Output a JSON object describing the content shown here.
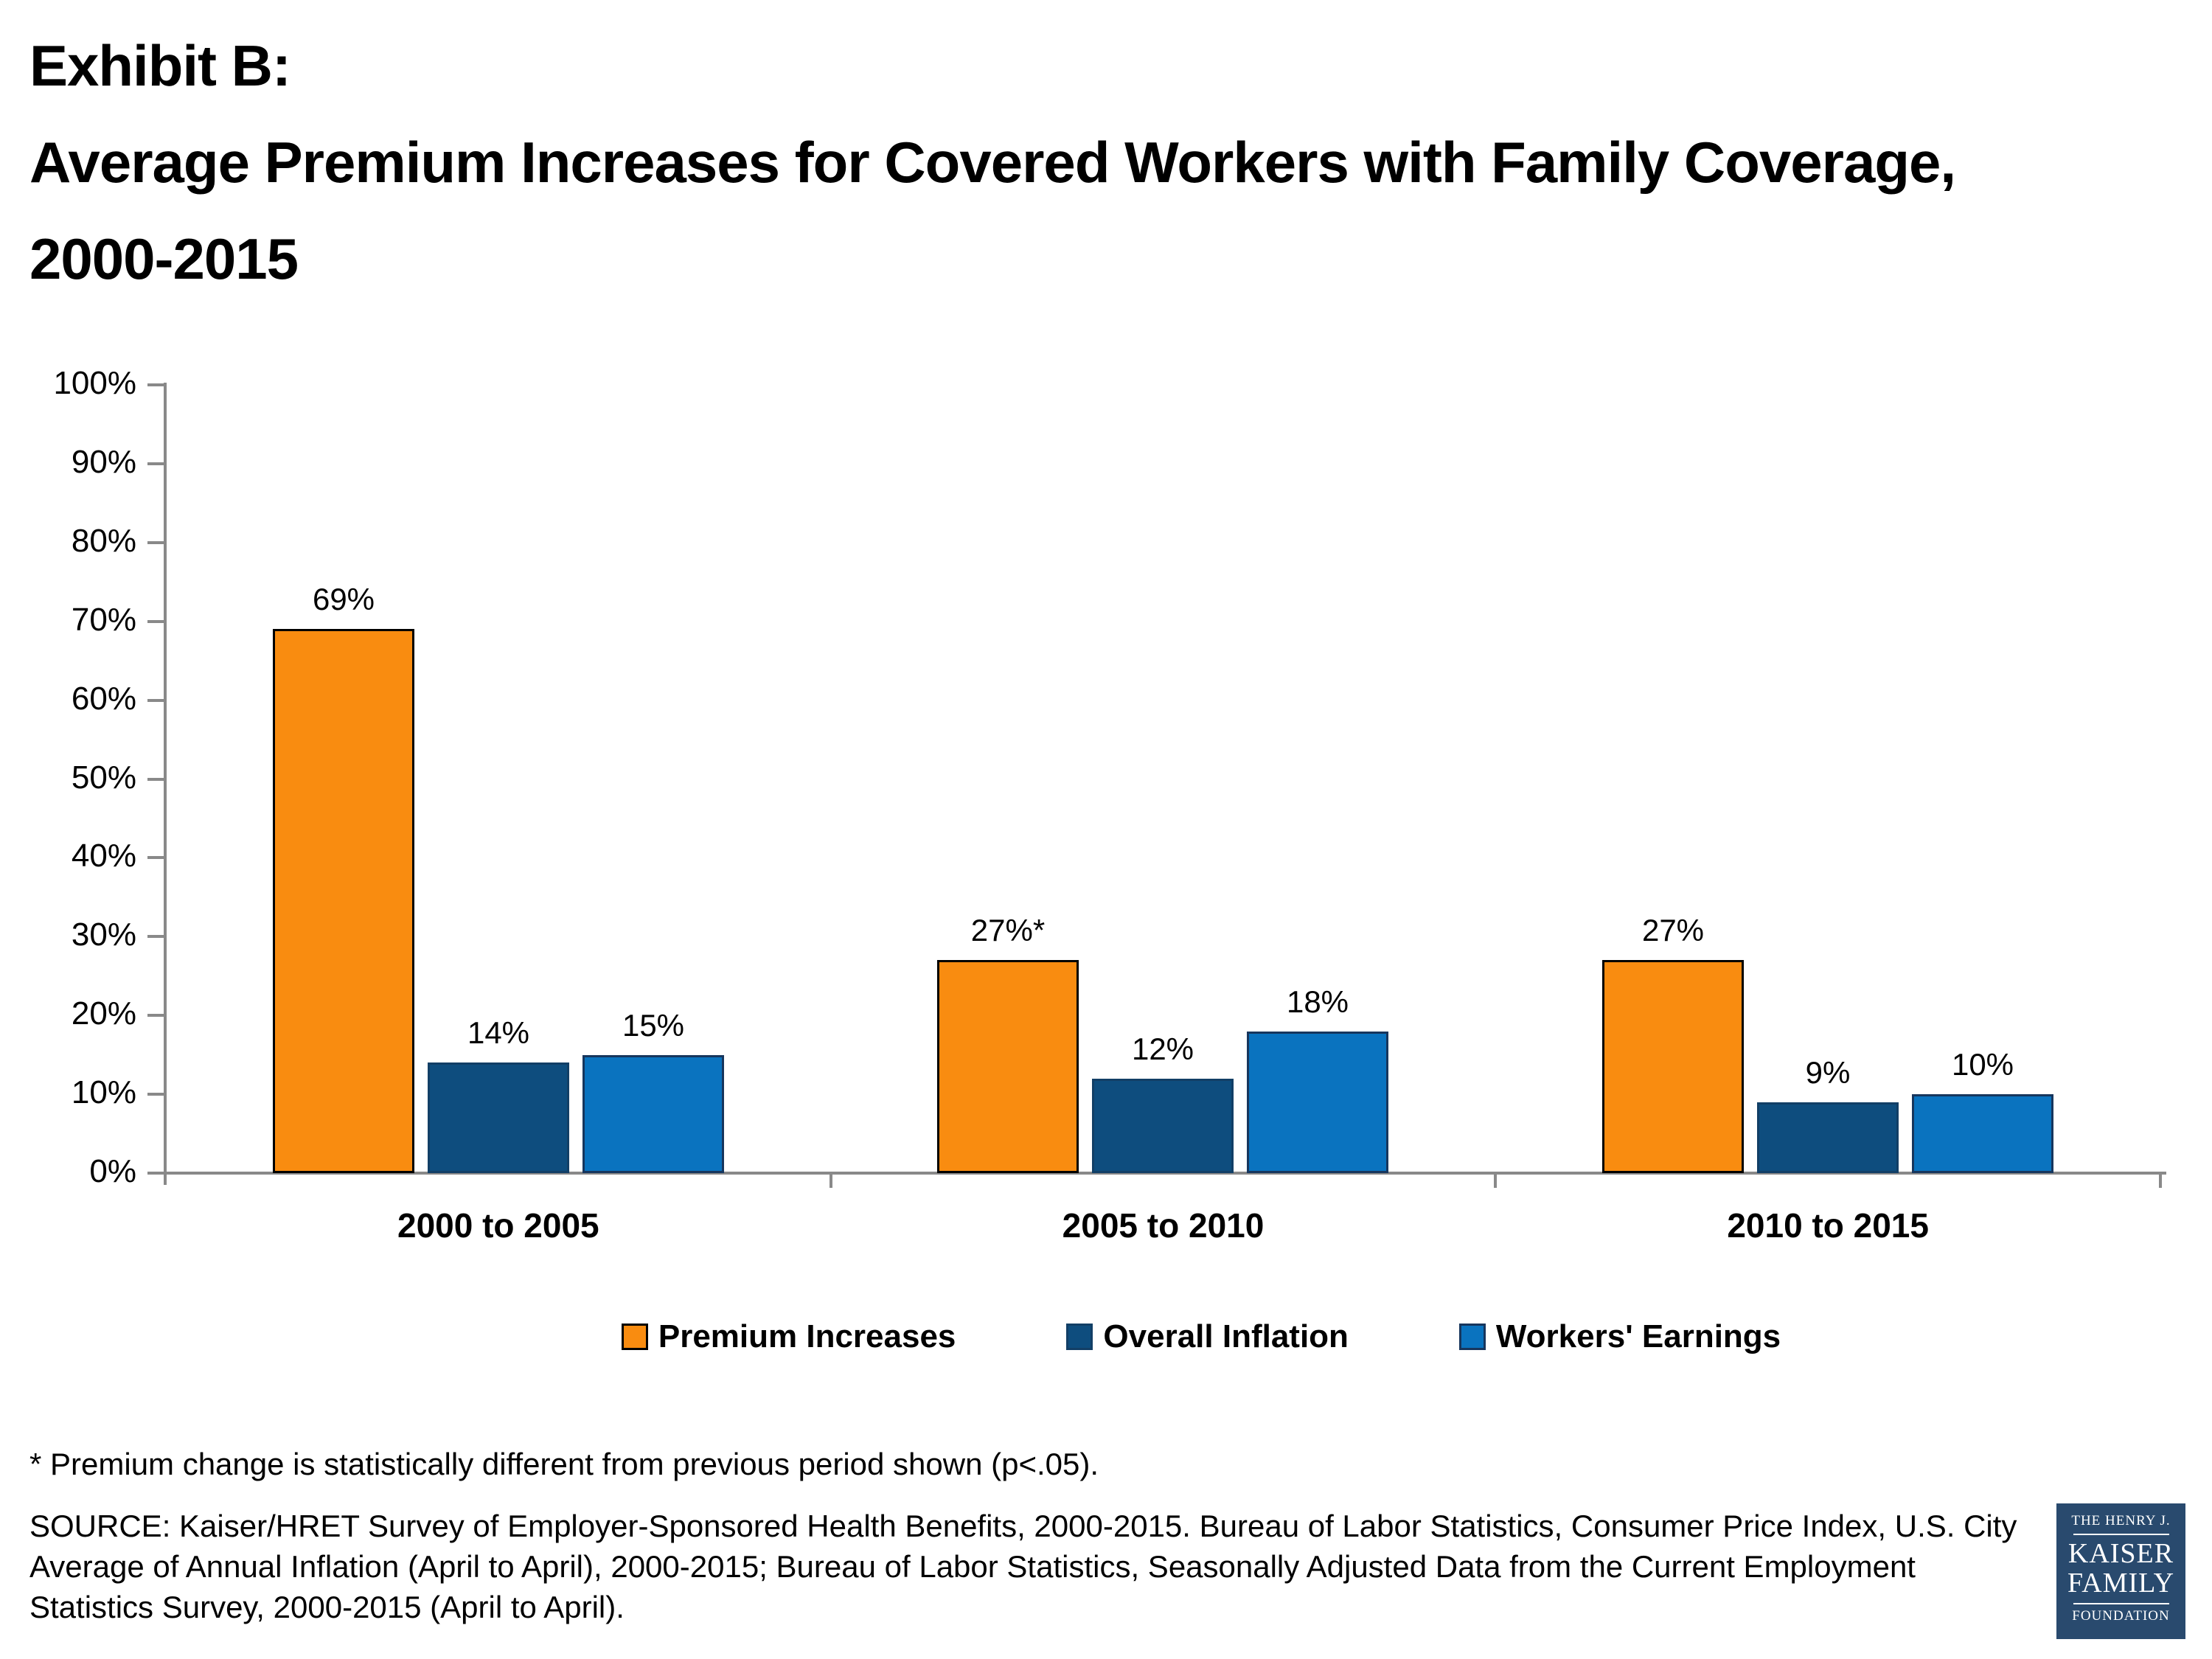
{
  "title": {
    "lines": [
      "Exhibit B:",
      "Average Premium Increases for Covered Workers with Family Coverage,",
      "2000-2015"
    ]
  },
  "chart_data": {
    "type": "bar",
    "title": "Average Premium Increases for Covered Workers with Family Coverage, 2000-2015",
    "categories": [
      "2000 to 2005",
      "2005 to 2010",
      "2010 to 2015"
    ],
    "series": [
      {
        "name": "Premium Increases",
        "values": [
          69,
          27,
          27
        ],
        "value_labels": [
          "69%",
          "27%*",
          "27%"
        ],
        "color": "#F98C10",
        "border_color": "#000000"
      },
      {
        "name": "Overall Inflation",
        "values": [
          14,
          12,
          9
        ],
        "value_labels": [
          "14%",
          "12%",
          "9%"
        ],
        "color": "#0E4D7E",
        "border_color": "#123F66"
      },
      {
        "name": "Workers' Earnings",
        "values": [
          15,
          18,
          10
        ],
        "value_labels": [
          "15%",
          "18%",
          "10%"
        ],
        "color": "#0A73BF",
        "border_color": "#17365D"
      }
    ],
    "xlabel": "",
    "ylabel": "",
    "ylim": [
      0,
      100
    ],
    "ytick_step": 10,
    "ytick_labels": [
      "0%",
      "10%",
      "20%",
      "30%",
      "40%",
      "50%",
      "60%",
      "70%",
      "80%",
      "90%",
      "100%"
    ],
    "grid": false,
    "legend_position": "bottom",
    "axis_color": "#898989"
  },
  "footnote": "* Premium change is statistically different from previous period shown (p<.05).",
  "source": "SOURCE:  Kaiser/HRET Survey of Employer-Sponsored Health Benefits, 2000-2015.  Bureau of Labor Statistics, Consumer Price Index, U.S. City Average of Annual Inflation (April to April), 2000-2015;  Bureau of Labor Statistics, Seasonally Adjusted Data from the Current Employment Statistics Survey, 2000-2015 (April to April).",
  "logo": {
    "line1": "THE HENRY J.",
    "line2": "KAISER",
    "line3": "FAMILY",
    "line4": "FOUNDATION",
    "bg_color": "#294A6E"
  }
}
